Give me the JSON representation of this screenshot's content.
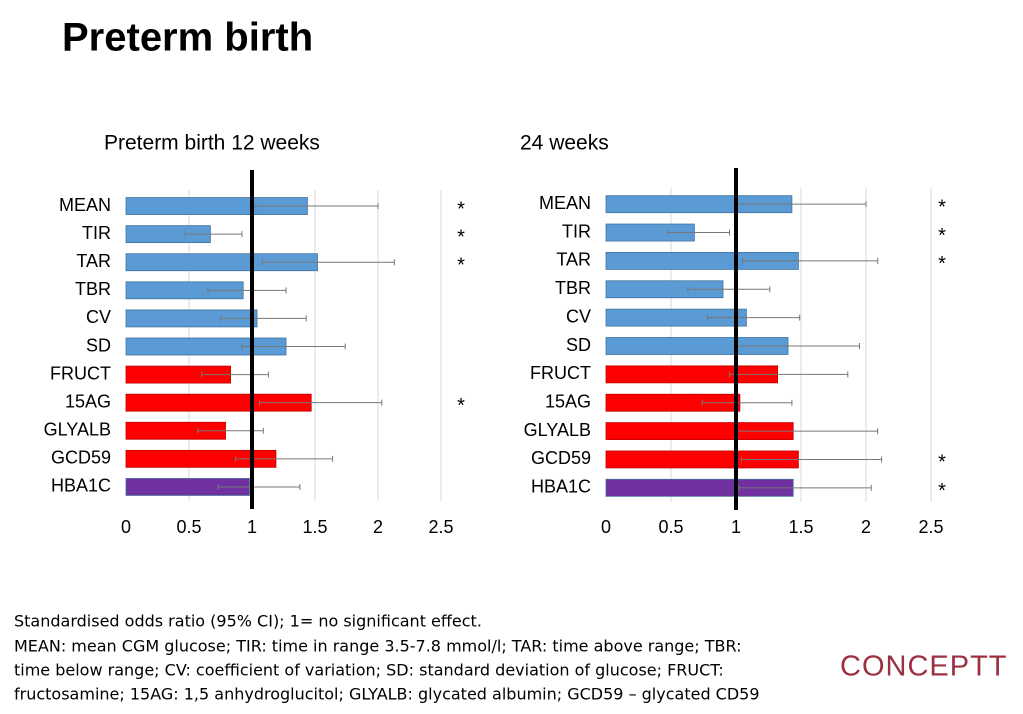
{
  "title": "Preterm birth",
  "chart_data": [
    {
      "type": "bar",
      "orientation": "horizontal",
      "title": "Preterm birth 12 weeks",
      "categories": [
        "MEAN",
        "TIR",
        "TAR",
        "TBR",
        "CV",
        "SD",
        "FRUCT",
        "15AG",
        "GLYALB",
        "GCD59",
        "HBA1C"
      ],
      "values": [
        1.44,
        0.67,
        1.52,
        0.93,
        1.04,
        1.27,
        0.83,
        1.47,
        0.79,
        1.19,
        0.98
      ],
      "ci_low": [
        1.03,
        0.47,
        1.08,
        0.65,
        0.75,
        0.92,
        0.6,
        1.06,
        0.57,
        0.87,
        0.73
      ],
      "ci_high": [
        2.0,
        0.92,
        2.13,
        1.27,
        1.43,
        1.74,
        1.13,
        2.03,
        1.09,
        1.64,
        1.38
      ],
      "colors": [
        "#5b9bd5",
        "#5b9bd5",
        "#5b9bd5",
        "#5b9bd5",
        "#5b9bd5",
        "#5b9bd5",
        "#ff0000",
        "#ff0000",
        "#ff0000",
        "#ff0000",
        "#7030a0"
      ],
      "significance": [
        "*",
        "*",
        "*",
        null,
        null,
        null,
        null,
        "*",
        null,
        null,
        null
      ],
      "reference_line": 1,
      "xlim": [
        0,
        2.5
      ],
      "xticks": [
        0,
        0.5,
        1,
        1.5,
        2,
        2.5
      ],
      "grid": true
    },
    {
      "type": "bar",
      "orientation": "horizontal",
      "title": "24 weeks",
      "categories": [
        "MEAN",
        "TIR",
        "TAR",
        "TBR",
        "CV",
        "SD",
        "FRUCT",
        "15AG",
        "GLYALB",
        "GCD59",
        "HBA1C"
      ],
      "values": [
        1.43,
        0.68,
        1.48,
        0.9,
        1.08,
        1.4,
        1.32,
        1.03,
        1.44,
        1.48,
        1.44
      ],
      "ci_low": [
        1.0,
        0.47,
        1.05,
        0.63,
        0.78,
        1.0,
        0.95,
        0.74,
        1.0,
        1.04,
        1.02
      ],
      "ci_high": [
        2.0,
        0.95,
        2.09,
        1.26,
        1.49,
        1.95,
        1.86,
        1.43,
        2.09,
        2.12,
        2.04
      ],
      "colors": [
        "#5b9bd5",
        "#5b9bd5",
        "#5b9bd5",
        "#5b9bd5",
        "#5b9bd5",
        "#5b9bd5",
        "#ff0000",
        "#ff0000",
        "#ff0000",
        "#ff0000",
        "#7030a0"
      ],
      "significance": [
        "*",
        "*",
        "*",
        null,
        null,
        null,
        null,
        null,
        null,
        "*",
        "*"
      ],
      "reference_line": 1,
      "xlim": [
        0,
        2.5
      ],
      "xticks": [
        0,
        0.5,
        1,
        1.5,
        2,
        2.5
      ],
      "grid": true
    }
  ],
  "footnote": [
    "Standardised odds ratio (95% CI); 1= no significant effect.",
    "MEAN: mean CGM glucose; TIR: time in range 3.5-7.8 mmol/l; TAR: time above range; TBR:",
    "time below range; CV: coefficient of variation; SD: standard deviation of glucose; FRUCT:",
    "fructosamine; 15AG: 1,5 anhydroglucitol; GLYALB: glycated albumin; GCD59 – glycated CD59"
  ],
  "logo": "CONCEPTT"
}
